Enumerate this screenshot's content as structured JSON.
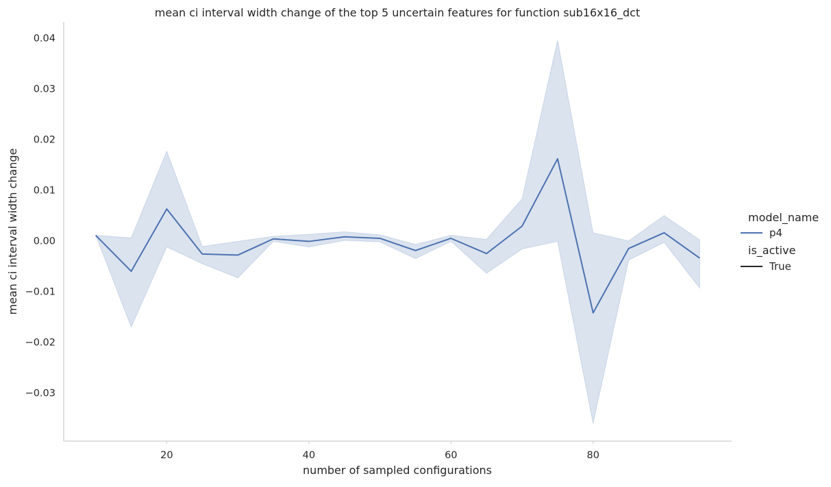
{
  "chart_data": {
    "type": "line",
    "title": "mean ci interval width change of the top 5 uncertain features for function sub16x16_dct",
    "xlabel": "number of sampled configurations",
    "ylabel": "mean ci interval width change",
    "xlim": [
      5.5,
      99.5
    ],
    "ylim": [
      -0.0395,
      0.0432
    ],
    "xticks": [
      20,
      40,
      60,
      80
    ],
    "xtick_labels": [
      "20",
      "40",
      "60",
      "80"
    ],
    "yticks": [
      -0.03,
      -0.02,
      -0.01,
      0.0,
      0.01,
      0.02,
      0.03,
      0.04
    ],
    "ytick_labels": [
      "−0.03",
      "−0.02",
      "−0.01",
      "0.00",
      "0.01",
      "0.02",
      "0.03",
      "0.04"
    ],
    "grid": false,
    "legend": {
      "placement": "right",
      "title_1": "model_name",
      "entry_1": "p4",
      "title_2": "is_active",
      "entry_2": "True"
    },
    "series": [
      {
        "name": "p4",
        "color": "#4c72b0",
        "band_color": "#4c72b0",
        "x": [
          10,
          15,
          20,
          25,
          30,
          35,
          40,
          45,
          50,
          55,
          60,
          65,
          70,
          75,
          80,
          85,
          90,
          95
        ],
        "y": [
          0.0011,
          -0.006,
          0.0063,
          -0.0026,
          -0.0028,
          0.0004,
          -0.0001,
          0.0008,
          0.0005,
          -0.0019,
          0.0005,
          -0.0025,
          0.0029,
          0.0162,
          -0.0142,
          -0.0015,
          0.0016,
          -0.0034
        ],
        "ci_low": [
          0.0011,
          -0.017,
          -0.0012,
          -0.0045,
          -0.0073,
          -0.0001,
          -0.0012,
          0.0001,
          -0.0002,
          -0.0035,
          -0.0001,
          -0.0064,
          -0.0016,
          -0.0001,
          -0.036,
          -0.0038,
          -0.0003,
          -0.0093
        ],
        "ci_high": [
          0.0011,
          0.0006,
          0.0177,
          -0.0011,
          -0.0001,
          0.0009,
          0.0013,
          0.0018,
          0.0012,
          -0.0007,
          0.0011,
          0.0003,
          0.0083,
          0.0396,
          0.0016,
          0.0,
          0.005,
          0.0002
        ]
      }
    ]
  }
}
